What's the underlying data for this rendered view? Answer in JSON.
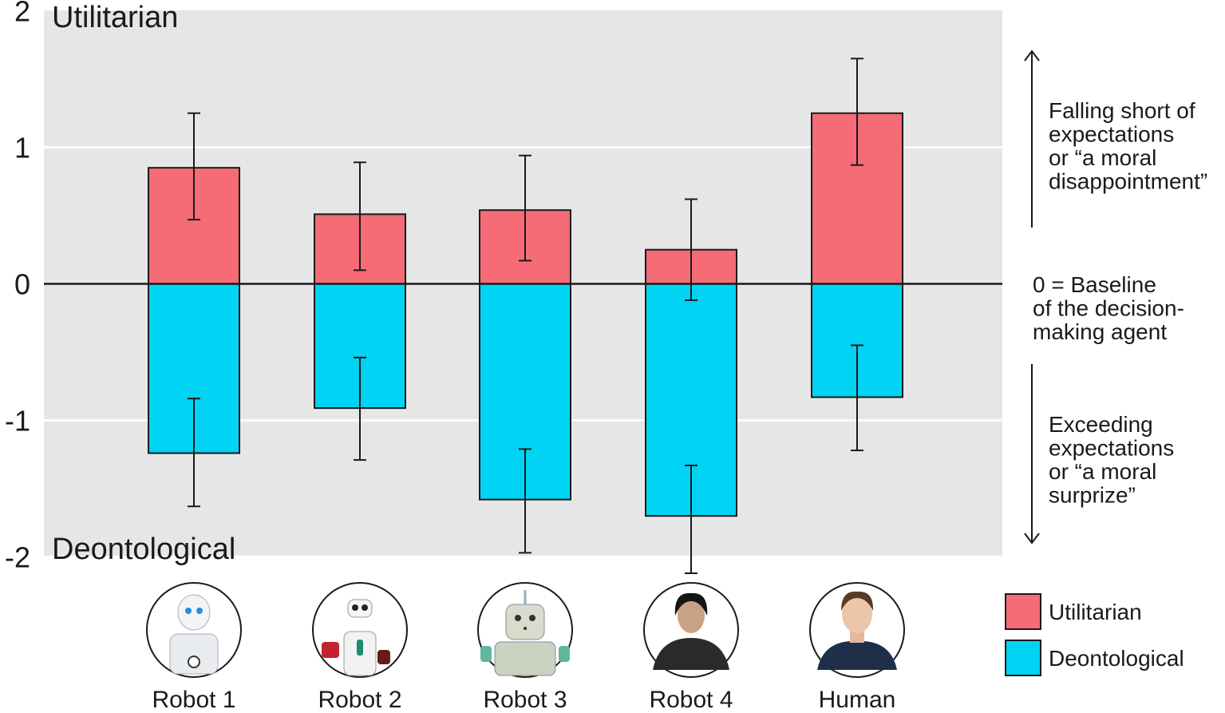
{
  "chart_data": {
    "type": "bar",
    "categories": [
      "Robot 1",
      "Robot 2",
      "Robot 3",
      "Robot 4",
      "Human"
    ],
    "ylim": [
      -2,
      2
    ],
    "y_ticks": [
      "2",
      "1",
      "0",
      "-1",
      "-2"
    ],
    "y_tick_values": [
      2,
      1,
      0,
      -1,
      -2
    ],
    "grid": true,
    "top_label": "Utilitarian",
    "bottom_label": "Deontological",
    "series": [
      {
        "name": "Utilitarian",
        "color": "#f56b76",
        "values": [
          0.85,
          0.51,
          0.54,
          0.25,
          1.25
        ],
        "error_low": [
          0.47,
          0.1,
          0.17,
          -0.12,
          0.87
        ],
        "error_high": [
          1.25,
          0.89,
          0.94,
          0.62,
          1.65
        ]
      },
      {
        "name": "Deontological",
        "color": "#00d3f3",
        "values": [
          -1.24,
          -0.91,
          -1.58,
          -1.7,
          -0.83
        ],
        "error_low": [
          -1.63,
          -1.29,
          -1.97,
          -2.12,
          -1.22
        ],
        "error_high": [
          -0.84,
          -0.54,
          -1.21,
          -1.33,
          -0.45
        ]
      }
    ],
    "annotations": {
      "up": [
        "Falling short of",
        "expectations",
        "or “a moral",
        "disappointment”"
      ],
      "baseline": [
        "0 = Baseline",
        "of the decision-",
        "making agent"
      ],
      "down": [
        "Exceeding",
        "expectations",
        "or “a moral",
        "surprize”"
      ]
    },
    "legend": {
      "position": "bottom-right",
      "items": [
        {
          "label": "Utilitarian",
          "color": "#f56b76"
        },
        {
          "label": "Deontological",
          "color": "#00d3f3"
        }
      ]
    },
    "category_icons": [
      "robot-1-portrait-icon",
      "robot-2-portrait-icon",
      "robot-3-portrait-icon",
      "robot-4-portrait-icon",
      "human-portrait-icon"
    ]
  }
}
